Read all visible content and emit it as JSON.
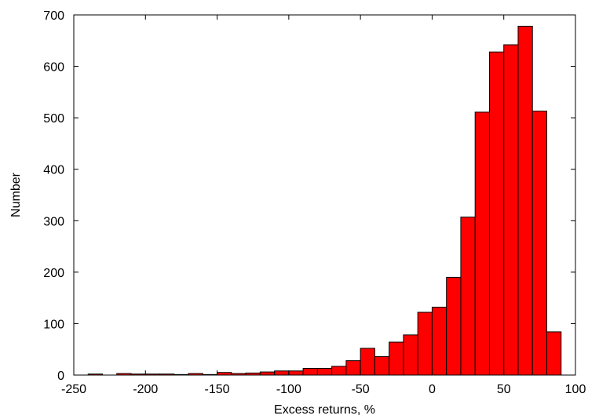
{
  "chart_data": {
    "type": "bar",
    "title": "",
    "xlabel": "Excess returns, %",
    "ylabel": "Number",
    "xlim": [
      -250,
      100
    ],
    "ylim": [
      0,
      700
    ],
    "grid": false,
    "bar_color": "#ff0000",
    "bin_width": 10,
    "x_ticks": [
      -250,
      -200,
      -150,
      -100,
      -50,
      0,
      50,
      100
    ],
    "y_ticks": [
      0,
      100,
      200,
      300,
      400,
      500,
      600,
      700
    ],
    "x_tick_labels": [
      "-250",
      "-200",
      "-150",
      "-100",
      "-50",
      "0",
      "50",
      "100"
    ],
    "y_tick_labels": [
      "0",
      "100",
      "200",
      "300",
      "400",
      "500",
      "600",
      "700"
    ],
    "bins": [
      {
        "x": -235,
        "value": 2
      },
      {
        "x": -215,
        "value": 3
      },
      {
        "x": -205,
        "value": 2
      },
      {
        "x": -195,
        "value": 2
      },
      {
        "x": -185,
        "value": 2
      },
      {
        "x": -175,
        "value": 1
      },
      {
        "x": -165,
        "value": 3
      },
      {
        "x": -155,
        "value": 1
      },
      {
        "x": -145,
        "value": 5
      },
      {
        "x": -135,
        "value": 3
      },
      {
        "x": -125,
        "value": 4
      },
      {
        "x": -115,
        "value": 6
      },
      {
        "x": -105,
        "value": 8
      },
      {
        "x": -95,
        "value": 8
      },
      {
        "x": -85,
        "value": 13
      },
      {
        "x": -75,
        "value": 13
      },
      {
        "x": -65,
        "value": 17
      },
      {
        "x": -55,
        "value": 28
      },
      {
        "x": -45,
        "value": 52
      },
      {
        "x": -35,
        "value": 36
      },
      {
        "x": -25,
        "value": 64
      },
      {
        "x": -15,
        "value": 78
      },
      {
        "x": -5,
        "value": 122
      },
      {
        "x": 5,
        "value": 132
      },
      {
        "x": 15,
        "value": 190
      },
      {
        "x": 25,
        "value": 307
      },
      {
        "x": 35,
        "value": 511
      },
      {
        "x": 45,
        "value": 628
      },
      {
        "x": 55,
        "value": 642
      },
      {
        "x": 65,
        "value": 678
      },
      {
        "x": 75,
        "value": 513
      },
      {
        "x": 85,
        "value": 84
      }
    ]
  }
}
